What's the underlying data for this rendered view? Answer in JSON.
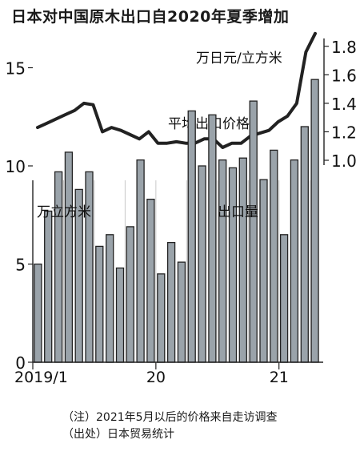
{
  "title": "日本对中国原木出口自2020年夏季增加",
  "chart_data": [
    {
      "type": "line",
      "series_label": "平均出口价格",
      "unit": "万日元/立方米",
      "y_ticks": [
        "1.0",
        "1.2",
        "1.4",
        "1.6",
        "1.8"
      ],
      "ylim": [
        1.0,
        1.9
      ],
      "color": "#222222",
      "values": [
        1.23,
        1.26,
        1.29,
        1.32,
        1.35,
        1.4,
        1.39,
        1.2,
        1.23,
        1.21,
        1.18,
        1.15,
        1.2,
        1.12,
        1.12,
        1.13,
        1.12,
        1.12,
        1.15,
        1.15,
        1.09,
        1.12,
        1.12,
        1.17,
        1.19,
        1.21,
        1.27,
        1.31,
        1.4,
        1.76,
        1.89
      ]
    },
    {
      "type": "bar",
      "series_label": "出口量",
      "unit": "万立方米",
      "y_ticks": [
        "0",
        "5",
        "10",
        "15"
      ],
      "ylim": [
        0,
        18
      ],
      "x_tick_labels": [
        "2019/1",
        "20",
        "21"
      ],
      "bar_color": "#9aa3aa",
      "values": [
        5.0,
        7.7,
        9.7,
        10.7,
        8.8,
        9.7,
        5.9,
        6.5,
        4.8,
        6.9,
        10.3,
        8.3,
        4.5,
        6.1,
        5.1,
        12.8,
        10.0,
        12.6,
        10.3,
        9.9,
        10.4,
        13.3,
        9.3,
        10.8,
        6.5,
        10.3,
        12.0,
        14.4
      ]
    }
  ],
  "notes": [
    "（注）2021年5月以后的价格来自走访调查",
    "（出处）日本贸易统计"
  ]
}
